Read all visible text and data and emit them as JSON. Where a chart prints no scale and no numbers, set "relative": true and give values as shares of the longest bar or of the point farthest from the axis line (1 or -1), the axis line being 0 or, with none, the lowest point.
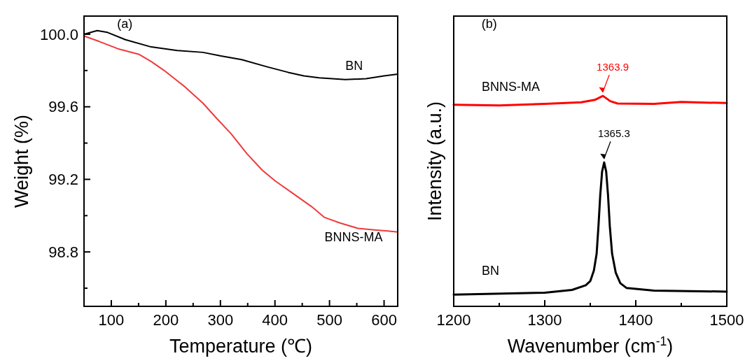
{
  "chart_data": [
    {
      "type": "line",
      "xlabel": "Temperature (℃)",
      "ylabel": "Weight (%)",
      "annotations": [
        "(a)"
      ],
      "xlim": [
        50,
        625
      ],
      "xticks": [
        100,
        {
          "value": 150,
          "label": null
        },
        200,
        {
          "value": 250,
          "label": null
        },
        300,
        {
          "value": 350,
          "label": null
        },
        400,
        {
          "value": 450,
          "label": null
        },
        500,
        {
          "value": 550,
          "label": null
        },
        600
      ],
      "ylim": [
        98.5,
        100.1
      ],
      "yticks": [
        {
          "value": 98.6,
          "label": null
        },
        98.8,
        {
          "value": 99.0,
          "label": null
        },
        99.2,
        {
          "value": 99.4,
          "label": null
        },
        99.6,
        {
          "value": 99.8,
          "label": null
        },
        {
          "value": 100.0,
          "label": "100.0"
        }
      ],
      "grid": false,
      "series": [
        {
          "name": "BN",
          "color": "#000000",
          "x": [
            50,
            74,
            93,
            126,
            173,
            221,
            268,
            301,
            339,
            386,
            424,
            453,
            481,
            529,
            567,
            600,
            625
          ],
          "values": [
            100.0,
            100.02,
            100.01,
            99.97,
            99.93,
            99.91,
            99.9,
            99.88,
            99.86,
            99.82,
            99.79,
            99.77,
            99.76,
            99.75,
            99.755,
            99.77,
            99.78
          ]
        },
        {
          "name": "BNNS-MA",
          "color": "#ee3b3b",
          "x": [
            50,
            78,
            112,
            150,
            173,
            197,
            235,
            268,
            292,
            320,
            349,
            377,
            401,
            434,
            467,
            491,
            519,
            552,
            586,
            607,
            625
          ],
          "values": [
            99.99,
            99.96,
            99.92,
            99.89,
            99.85,
            99.8,
            99.71,
            99.62,
            99.54,
            99.45,
            99.34,
            99.25,
            99.19,
            99.12,
            99.05,
            98.99,
            98.96,
            98.93,
            98.92,
            98.915,
            98.91
          ]
        }
      ]
    },
    {
      "type": "line",
      "relative": true,
      "xlabel": "Wavenumber (cm$^{-1}$)",
      "ylabel": "Intensity (a.u.)",
      "annotations": [
        "(b)",
        {
          "text": "1363.9",
          "x": 1363.9,
          "y": 1.0
        },
        {
          "text": "1365.3",
          "x": 1365.3,
          "y": 0.684
        }
      ],
      "xlim": [
        1200,
        1500
      ],
      "xticks": [
        1200,
        {
          "value": 1250,
          "label": null
        },
        1300,
        {
          "value": 1350,
          "label": null
        },
        1400,
        {
          "value": 1450,
          "label": null
        },
        1500
      ],
      "tick_labels": "x",
      "grid": false,
      "series": [
        {
          "name": "BNNS-MA",
          "color": "#ff0000",
          "x": [
            1200,
            1250,
            1300,
            1340,
            1355,
            1363.9,
            1372,
            1380,
            1420,
            1450,
            1500
          ],
          "values": [
            0.958,
            0.955,
            0.962,
            0.97,
            0.981,
            1.0,
            0.975,
            0.964,
            0.962,
            0.971,
            0.966
          ]
        },
        {
          "name": "BN",
          "color": "#000000",
          "x": [
            1200,
            1300,
            1330,
            1345,
            1350,
            1354,
            1357,
            1359,
            1361,
            1363,
            1365.3,
            1367.5,
            1369.5,
            1371.5,
            1374,
            1378,
            1383,
            1390,
            1420,
            1500
          ],
          "values": [
            0.056,
            0.065,
            0.078,
            0.1,
            0.12,
            0.17,
            0.25,
            0.38,
            0.53,
            0.64,
            0.684,
            0.64,
            0.53,
            0.38,
            0.25,
            0.16,
            0.11,
            0.087,
            0.075,
            0.07
          ]
        }
      ]
    }
  ]
}
